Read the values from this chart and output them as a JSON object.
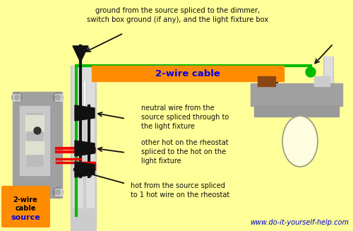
{
  "bg_color": "#FFFF99",
  "title_text": "ground from the source spliced to the dimmer,\nswitch box ground (if any), and the light fixture box",
  "cable_label": "2-wire cable",
  "cable_color": "#FF8C00",
  "cable_text_color": "#0000EE",
  "website": "www.do-it-yourself-help.com",
  "website_color": "#0000CC",
  "annotation1": "neutral wire from the\nsource spliced through to\nthe light fixture",
  "annotation2": "other hot on the rheostat\nspliced to the hot on the\nlight fixture",
  "annotation3": "hot from the source spliced\nto 1 hot wire on the rheostat",
  "green_color": "#00BB00",
  "gray_color": "#A0A0A0",
  "black_color": "#111111",
  "red_color": "#EE0000",
  "orange_color": "#FF8C00",
  "cream_color": "#FFFDE0",
  "brown_color": "#8B4513",
  "light_gray": "#CCCCCC",
  "dark_gray": "#666666"
}
